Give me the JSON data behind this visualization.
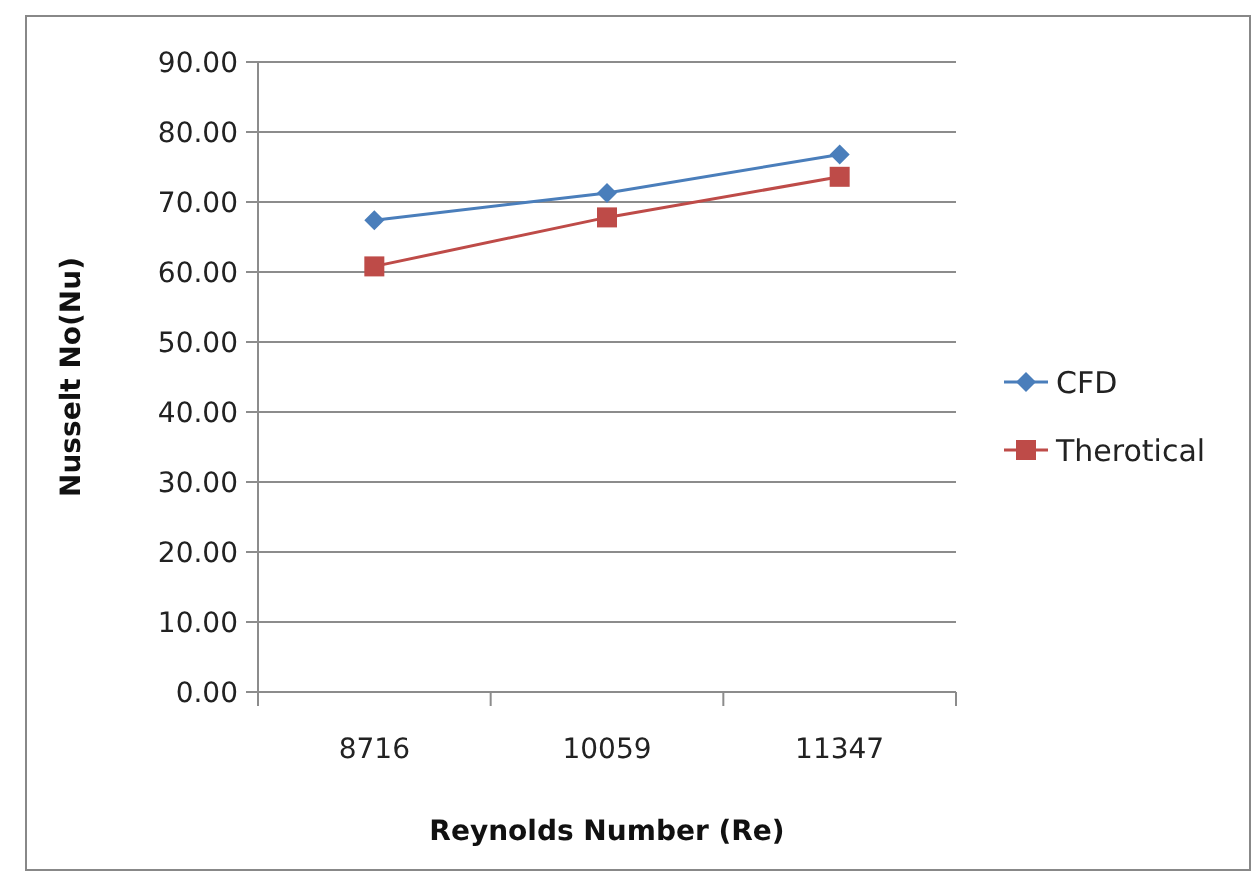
{
  "chart_data": {
    "type": "line",
    "xlabel": "Reynolds Number (Re)",
    "ylabel": "Nusselt No(Nu)",
    "categories": [
      "8716",
      "10059",
      "11347"
    ],
    "series": [
      {
        "name": "CFD",
        "color": "#4a7ebb",
        "values": [
          67.4,
          71.3,
          76.8
        ],
        "marker": "diamond"
      },
      {
        "name": "Therotical",
        "color": "#be4b48",
        "values": [
          60.8,
          67.8,
          73.6
        ],
        "marker": "square"
      }
    ],
    "ylim": [
      0,
      90
    ],
    "yticks": [
      {
        "value": 0,
        "label": "0.00"
      },
      {
        "value": 10,
        "label": "10.00"
      },
      {
        "value": 20,
        "label": "20.00"
      },
      {
        "value": 30,
        "label": "30.00"
      },
      {
        "value": 40,
        "label": "40.00"
      },
      {
        "value": 50,
        "label": "50.00"
      },
      {
        "value": 60,
        "label": "60.00"
      },
      {
        "value": 70,
        "label": "70.00"
      },
      {
        "value": 80,
        "label": "80.00"
      },
      {
        "value": 90,
        "label": "90.00"
      }
    ],
    "grid": "y",
    "legend": "right",
    "line_style": "solid"
  }
}
